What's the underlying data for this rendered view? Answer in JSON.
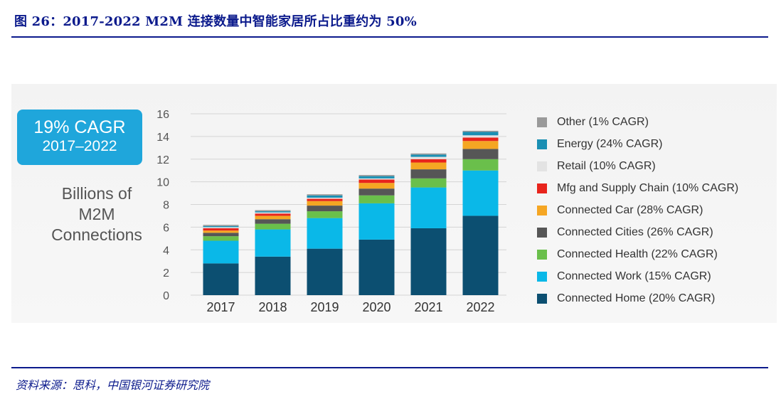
{
  "figure_title": "图 26：2017-2022 M2M 连接数量中智能家居所占比重约为 50%",
  "source": "资料来源：思科，中国银河证券研究院",
  "cagr_box": {
    "line1": "19% CAGR",
    "line2": "2017–2022"
  },
  "y_axis_title": [
    "Billions of",
    "M2M",
    "Connections"
  ],
  "chart_data": {
    "type": "bar",
    "stacked": true,
    "title": "",
    "xlabel": "",
    "ylabel": "Billions of M2M Connections",
    "ylim": [
      0,
      16
    ],
    "yticks": [
      0,
      2,
      4,
      6,
      8,
      10,
      12,
      14,
      16
    ],
    "grid": true,
    "legend_placement": "right",
    "categories": [
      "2017",
      "2018",
      "2019",
      "2020",
      "2021",
      "2022"
    ],
    "series": [
      {
        "name": "Connected Home (20% CAGR)",
        "color": "#0c4f71",
        "values": [
          2.8,
          3.4,
          4.1,
          4.9,
          5.9,
          7.0
        ]
      },
      {
        "name": "Connected Work (15% CAGR)",
        "color": "#0ab8e8",
        "values": [
          2.0,
          2.4,
          2.7,
          3.2,
          3.6,
          4.0
        ]
      },
      {
        "name": "Connected Health (22% CAGR)",
        "color": "#6abf4b",
        "values": [
          0.4,
          0.5,
          0.6,
          0.7,
          0.8,
          1.0
        ]
      },
      {
        "name": "Connected Cities (26% CAGR)",
        "color": "#565656",
        "values": [
          0.3,
          0.4,
          0.5,
          0.6,
          0.8,
          0.9
        ]
      },
      {
        "name": "Connected Car (28% CAGR)",
        "color": "#f5a623",
        "values": [
          0.2,
          0.3,
          0.4,
          0.5,
          0.6,
          0.7
        ]
      },
      {
        "name": "Mfg and Supply Chain (10% CAGR)",
        "color": "#e8241c",
        "values": [
          0.2,
          0.2,
          0.2,
          0.3,
          0.3,
          0.3
        ]
      },
      {
        "name": "Retail (10% CAGR)",
        "color": "#e3e3e3",
        "values": [
          0.1,
          0.1,
          0.1,
          0.1,
          0.2,
          0.2
        ]
      },
      {
        "name": "Energy (24% CAGR)",
        "color": "#1a8fb3",
        "values": [
          0.1,
          0.1,
          0.2,
          0.2,
          0.2,
          0.3
        ]
      },
      {
        "name": "Other (1% CAGR)",
        "color": "#9a9a9a",
        "values": [
          0.1,
          0.1,
          0.1,
          0.1,
          0.1,
          0.1
        ]
      }
    ]
  }
}
